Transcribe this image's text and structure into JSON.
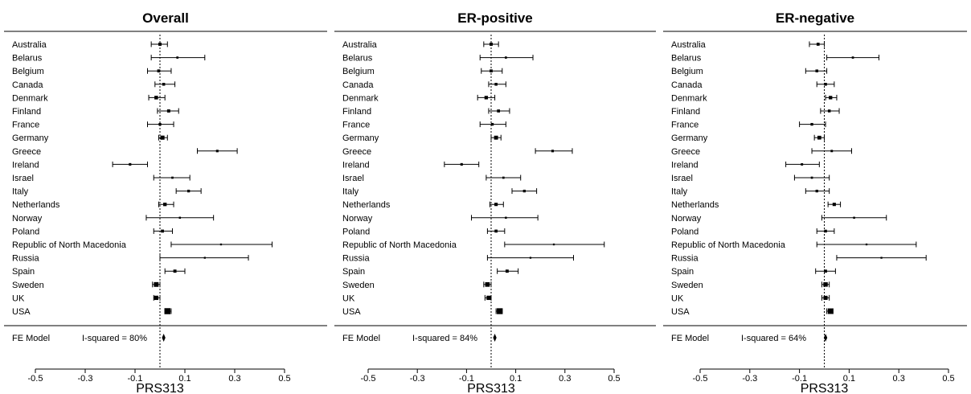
{
  "colors": {
    "ink": "#000000",
    "background": "#ffffff"
  },
  "summary_label": "FE Model",
  "chart_data": [
    {
      "type": "forest",
      "title": "Overall",
      "xlabel": "PRS313",
      "xlim": [
        -0.5,
        0.5
      ],
      "xticks": [
        "-0.5",
        "-0.3",
        "-0.1",
        "0.1",
        "0.3",
        "0.5"
      ],
      "reference_line": 0,
      "countries": [
        "Australia",
        "Belarus",
        "Belgium",
        "Canada",
        "Denmark",
        "Finland",
        "France",
        "Germany",
        "Greece",
        "Ireland",
        "Israel",
        "Italy",
        "Netherlands",
        "Norway",
        "Poland",
        "Republic of North Macedonia",
        "Russia",
        "Spain",
        "Sweden",
        "UK",
        "USA"
      ],
      "estimates": [
        0.0,
        0.07,
        -0.005,
        0.015,
        -0.015,
        0.035,
        0.0,
        0.01,
        0.23,
        -0.12,
        0.05,
        0.115,
        0.02,
        0.08,
        0.01,
        0.245,
        0.18,
        0.06,
        -0.015,
        -0.015,
        0.03
      ],
      "lower": [
        -0.035,
        -0.035,
        -0.05,
        -0.02,
        -0.045,
        -0.01,
        -0.05,
        -0.005,
        0.15,
        -0.19,
        -0.025,
        0.065,
        -0.005,
        -0.055,
        -0.025,
        0.045,
        0.0,
        0.02,
        -0.03,
        -0.025,
        0.02
      ],
      "upper": [
        0.03,
        0.18,
        0.045,
        0.06,
        0.02,
        0.075,
        0.055,
        0.03,
        0.31,
        -0.05,
        0.12,
        0.165,
        0.055,
        0.215,
        0.05,
        0.45,
        0.355,
        0.1,
        0.0,
        0.0,
        0.045
      ],
      "weights": [
        1.2,
        0.6,
        1.1,
        1.0,
        1.5,
        1.2,
        0.9,
        1.8,
        0.8,
        0.8,
        0.6,
        0.9,
        1.4,
        0.5,
        1.1,
        0.4,
        0.4,
        1.2,
        2.2,
        1.9,
        3.0
      ],
      "summary": {
        "estimate": 0.015,
        "lower": 0.008,
        "upper": 0.022,
        "i_squared": "I-squared = 80%"
      }
    },
    {
      "type": "forest",
      "title": "ER-positive",
      "xlabel": "PRS313",
      "xlim": [
        -0.5,
        0.5
      ],
      "xticks": [
        "-0.5",
        "-0.3",
        "-0.1",
        "0.1",
        "0.3",
        "0.5"
      ],
      "reference_line": 0,
      "countries": [
        "Australia",
        "Belarus",
        "Belgium",
        "Canada",
        "Denmark",
        "Finland",
        "France",
        "Germany",
        "Greece",
        "Ireland",
        "Israel",
        "Italy",
        "Netherlands",
        "Norway",
        "Poland",
        "Republic of North Macedonia",
        "Russia",
        "Spain",
        "Sweden",
        "UK",
        "USA"
      ],
      "estimates": [
        0.0,
        0.06,
        0.0,
        0.02,
        -0.02,
        0.03,
        0.005,
        0.02,
        0.25,
        -0.12,
        0.05,
        0.135,
        0.02,
        0.06,
        0.02,
        0.255,
        0.16,
        0.065,
        -0.015,
        -0.01,
        0.035
      ],
      "lower": [
        -0.03,
        -0.045,
        -0.04,
        -0.01,
        -0.055,
        -0.01,
        -0.045,
        0.0,
        0.18,
        -0.19,
        -0.02,
        0.085,
        -0.005,
        -0.08,
        -0.015,
        0.055,
        -0.015,
        0.025,
        -0.03,
        -0.025,
        0.02
      ],
      "upper": [
        0.03,
        0.17,
        0.045,
        0.06,
        0.015,
        0.075,
        0.06,
        0.04,
        0.33,
        -0.05,
        0.12,
        0.185,
        0.05,
        0.19,
        0.055,
        0.46,
        0.335,
        0.11,
        0.0,
        0.0,
        0.045
      ],
      "weights": [
        1.2,
        0.6,
        1.1,
        1.0,
        1.4,
        1.1,
        0.9,
        1.7,
        0.8,
        0.8,
        0.6,
        0.9,
        1.3,
        0.5,
        1.1,
        0.4,
        0.4,
        1.2,
        2.1,
        1.9,
        2.9
      ],
      "summary": {
        "estimate": 0.015,
        "lower": 0.008,
        "upper": 0.022,
        "i_squared": "I-squared = 84%"
      }
    },
    {
      "type": "forest",
      "title": "ER-negative",
      "xlabel": "PRS313",
      "xlim": [
        -0.5,
        0.5
      ],
      "xticks": [
        "-0.5",
        "-0.3",
        "-0.1",
        "0.1",
        "0.3",
        "0.5"
      ],
      "reference_line": 0,
      "countries": [
        "Australia",
        "Belarus",
        "Belgium",
        "Canada",
        "Denmark",
        "Finland",
        "France",
        "Germany",
        "Greece",
        "Ireland",
        "Israel",
        "Italy",
        "Netherlands",
        "Norway",
        "Poland",
        "Republic of North Macedonia",
        "Russia",
        "Spain",
        "Sweden",
        "UK",
        "USA"
      ],
      "estimates": [
        -0.025,
        0.115,
        -0.03,
        0.005,
        0.025,
        0.02,
        -0.05,
        -0.02,
        0.03,
        -0.09,
        -0.05,
        -0.03,
        0.04,
        0.12,
        0.005,
        0.17,
        0.23,
        0.005,
        0.005,
        0.005,
        0.025
      ],
      "lower": [
        -0.06,
        0.01,
        -0.075,
        -0.03,
        0.005,
        -0.015,
        -0.1,
        -0.04,
        -0.05,
        -0.155,
        -0.12,
        -0.075,
        0.015,
        -0.01,
        -0.03,
        -0.03,
        0.05,
        -0.035,
        -0.01,
        -0.01,
        0.01
      ],
      "upper": [
        0.0,
        0.22,
        0.01,
        0.04,
        0.05,
        0.06,
        0.005,
        0.0,
        0.11,
        -0.02,
        0.02,
        0.02,
        0.065,
        0.25,
        0.04,
        0.37,
        0.41,
        0.045,
        0.02,
        0.02,
        0.035
      ],
      "weights": [
        1.1,
        0.6,
        1.0,
        1.0,
        1.4,
        1.0,
        0.9,
        1.6,
        0.7,
        0.7,
        0.6,
        0.9,
        1.3,
        0.5,
        1.0,
        0.4,
        0.4,
        1.1,
        2.0,
        1.8,
        2.7
      ],
      "summary": {
        "estimate": 0.005,
        "lower": -0.002,
        "upper": 0.012,
        "i_squared": "I-squared = 64%"
      }
    }
  ]
}
